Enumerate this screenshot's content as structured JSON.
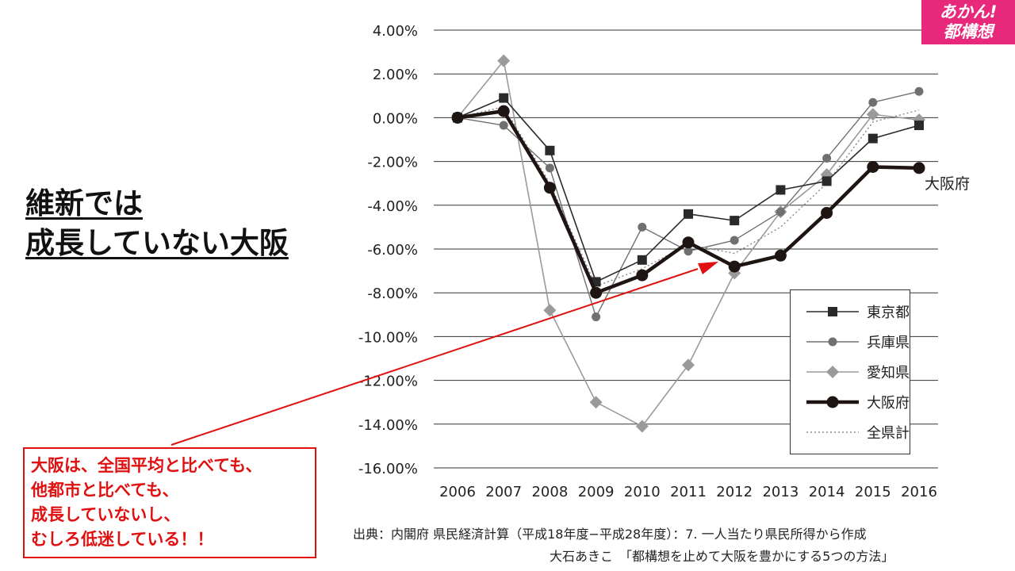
{
  "badge": {
    "line1": "あかん!",
    "line2": "都構想"
  },
  "headline": {
    "line1": "維新では",
    "line2": "成長していない大阪"
  },
  "callout": {
    "lines": [
      "大阪は、全国平均と比べても、",
      "他都市と比べても、",
      "成長していないし、",
      "むしろ低迷している！！"
    ]
  },
  "source": {
    "line1": "出典：内閣府 県民経済計算（平成18年度−平成28年度）：7. 一人当たり県民所得から作成",
    "line2": "大石あきこ　「都構想を止めて大阪を豊かにする5つの方法」"
  },
  "colors": {
    "accent_pink": "#e8287a",
    "callout_red": "#e01010"
  },
  "chart_data": {
    "type": "line",
    "x": [
      2006,
      2007,
      2008,
      2009,
      2010,
      2011,
      2012,
      2013,
      2014,
      2015,
      2016
    ],
    "ylim": [
      -16,
      4
    ],
    "yticks": [
      4,
      2,
      0,
      -2,
      -4,
      -6,
      -8,
      -10,
      -12,
      -14,
      -16
    ],
    "ytick_labels": [
      "4.00%",
      "2.00%",
      "0.00%",
      "-2.00%",
      "-4.00%",
      "-6.00%",
      "-8.00%",
      "-10.00%",
      "-12.00%",
      "-14.00%",
      "-16.00%"
    ],
    "grid": true,
    "legend_position": "bottom-right",
    "end_label": "大阪府",
    "series": [
      {
        "name": "東京都",
        "marker": "square",
        "color": "#2a2a2a",
        "width": 1.6,
        "values": [
          0.0,
          0.9,
          -1.5,
          -7.5,
          -6.5,
          -4.4,
          -4.7,
          -3.3,
          -2.9,
          -0.95,
          -0.35
        ]
      },
      {
        "name": "兵庫県",
        "marker": "circle",
        "color": "#707070",
        "width": 1.4,
        "values": [
          0.0,
          -0.35,
          -2.3,
          -9.1,
          -5.0,
          -6.1,
          -5.6,
          -4.3,
          -1.85,
          0.7,
          1.2
        ]
      },
      {
        "name": "愛知県",
        "marker": "diamond",
        "color": "#9a9a9a",
        "width": 1.6,
        "values": [
          0.0,
          2.6,
          -8.8,
          -13.0,
          -14.1,
          -11.3,
          -7.1,
          -4.3,
          -2.6,
          0.15,
          -0.1
        ]
      },
      {
        "name": "大阪府",
        "marker": "bigcircle",
        "color": "#1e1412",
        "width": 4.5,
        "values": [
          0.0,
          0.3,
          -3.2,
          -8.0,
          -7.2,
          -5.7,
          -6.8,
          -6.3,
          -4.35,
          -2.25,
          -2.3
        ]
      },
      {
        "name": "全県計",
        "marker": "none",
        "color": "#888888",
        "width": 1.4,
        "dashed": true,
        "values": [
          0.0,
          0.5,
          -3.0,
          -7.7,
          -6.9,
          -5.8,
          -6.2,
          -5.0,
          -3.0,
          -0.2,
          0.35
        ]
      }
    ]
  }
}
